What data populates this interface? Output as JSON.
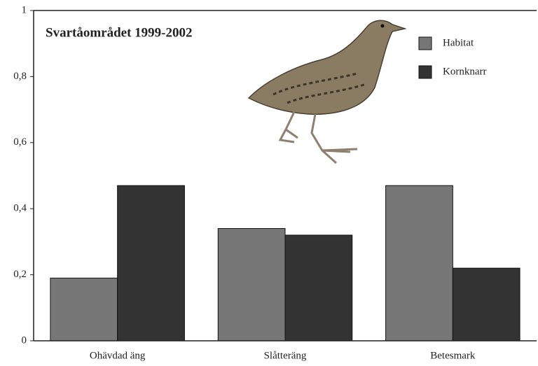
{
  "chart_data": {
    "type": "bar",
    "title": "Svartåområdet 1999-2002",
    "categories": [
      "Ohävdad äng",
      "Slåtteräng",
      "Betesmark"
    ],
    "series": [
      {
        "name": "Habitat",
        "color": "#777777",
        "values": [
          0.19,
          0.34,
          0.47
        ]
      },
      {
        "name": "Kornknarr",
        "color": "#333333",
        "values": [
          0.47,
          0.32,
          0.22
        ]
      }
    ],
    "ylim": [
      0,
      1
    ],
    "yticks": [
      0,
      {
        "value": 0.2,
        "label": "0,2"
      },
      {
        "value": 0.4,
        "label": "0,4"
      },
      {
        "value": 0.6,
        "label": "0,6"
      },
      {
        "value": 0.8,
        "label": "0,8"
      },
      1
    ],
    "legend": "top-right"
  }
}
